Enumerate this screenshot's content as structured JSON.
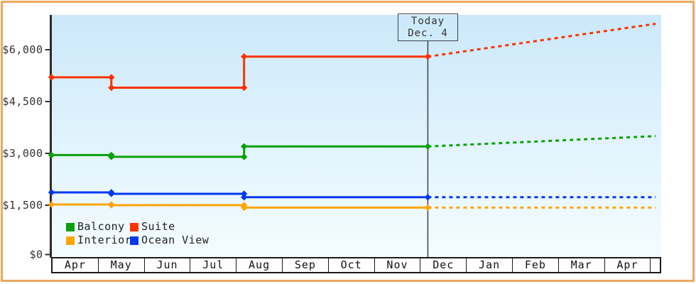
{
  "frame": {
    "border_color": "#eca85e",
    "background_color": "#ffffff"
  },
  "today_marker": {
    "label": "Today",
    "date": "Dec. 4"
  },
  "legend": {
    "items": [
      {
        "label": "Balcony",
        "color": "#0ba00b"
      },
      {
        "label": "Suite",
        "color": "#fb3300"
      },
      {
        "label": "Interior",
        "color": "#ffa500"
      },
      {
        "label": "Ocean View",
        "color": "#0638f0"
      }
    ]
  },
  "chart_data": {
    "type": "line",
    "x_axis": {
      "months": [
        "Apr",
        "May",
        "Jun",
        "Jul",
        "Aug",
        "Sep",
        "Oct",
        "Nov",
        "Dec",
        "Jan",
        "Feb",
        "Mar",
        "Apr"
      ]
    },
    "y_axis": {
      "ticks": [
        {
          "label": "$0",
          "value": 0
        },
        {
          "label": "$1,500",
          "value": 1500
        },
        {
          "label": "$3,000",
          "value": 3000
        },
        {
          "label": "$4,500",
          "value": 4500
        },
        {
          "label": "$6,000",
          "value": 6000
        }
      ],
      "ylim": [
        0,
        7000
      ]
    },
    "grid": false,
    "legend_position": "bottom-left",
    "today": {
      "x": 8.11
    },
    "projection_end_x": 13.02,
    "series": [
      {
        "name": "Suite",
        "color": "#fb3300",
        "steps": [
          {
            "x": 0,
            "price": 5200
          },
          {
            "x": 1.29,
            "price": 4900
          },
          {
            "x": 4.15,
            "price": 5800
          }
        ],
        "projected_price": 6750
      },
      {
        "name": "Balcony",
        "color": "#0ba00b",
        "steps": [
          {
            "x": 0,
            "price": 2950
          },
          {
            "x": 1.29,
            "price": 2900
          },
          {
            "x": 4.15,
            "price": 3200
          }
        ],
        "projected_price": 3500
      },
      {
        "name": "Interior",
        "color": "#ffa500",
        "steps": [
          {
            "x": 0,
            "price": 1520
          },
          {
            "x": 1.29,
            "price": 1500
          },
          {
            "x": 4.15,
            "price": 1430
          }
        ],
        "projected_price": 1430
      },
      {
        "name": "Ocean View",
        "color": "#0638f0",
        "steps": [
          {
            "x": 0,
            "price": 1870
          },
          {
            "x": 1.29,
            "price": 1830
          },
          {
            "x": 4.15,
            "price": 1730
          }
        ],
        "projected_price": 1730
      }
    ]
  }
}
